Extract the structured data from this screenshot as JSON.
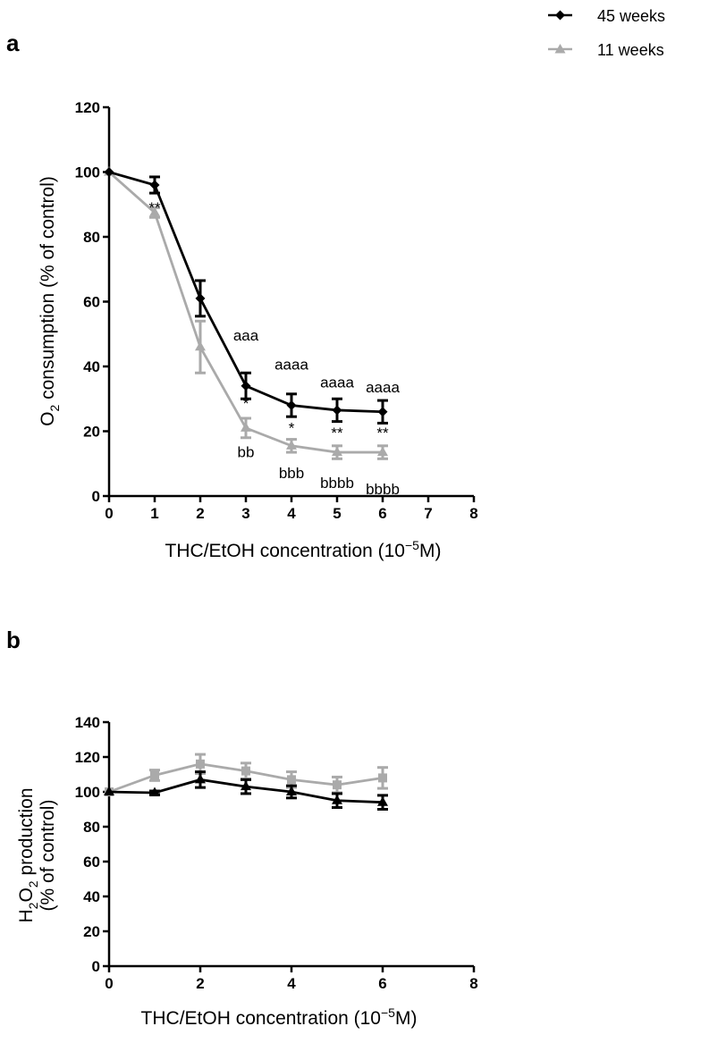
{
  "legend": {
    "series1": "45 weeks",
    "series2": "11 weeks"
  },
  "chart_data": [
    {
      "panel": "a",
      "type": "line",
      "ylabel_main": "O",
      "ylabel_sub": "2",
      "ylabel_rest": " consumption (% of control)",
      "xlabel_main": "THC/EtOH concentration (10",
      "xlabel_sup": "−5",
      "xlabel_rest": "M)",
      "xlim": [
        0,
        8
      ],
      "ylim": [
        0,
        120
      ],
      "xticks": [
        0,
        1,
        2,
        3,
        4,
        5,
        6,
        7,
        8
      ],
      "yticks": [
        0,
        20,
        40,
        60,
        80,
        100,
        120
      ],
      "series": [
        {
          "name": "45 weeks",
          "color": "#000000",
          "marker": "diamond",
          "x": [
            0,
            1,
            2,
            3,
            4,
            5,
            6
          ],
          "y": [
            100,
            96,
            61,
            34,
            28,
            26.5,
            26
          ],
          "err": [
            0,
            2.5,
            5.5,
            4,
            3.5,
            3.5,
            3.5
          ]
        },
        {
          "name": "11 weeks",
          "color": "#aaaaaa",
          "marker": "triangle",
          "x": [
            0,
            1,
            2,
            3,
            4,
            5,
            6
          ],
          "y": [
            100,
            87.5,
            46,
            21,
            15.5,
            13.5,
            13.5
          ],
          "err": [
            0,
            1.5,
            8,
            3,
            2,
            2,
            2
          ]
        }
      ],
      "annotations": [
        {
          "text": "**",
          "x": 1,
          "y": 87.5
        },
        {
          "text": "aaa",
          "x": 3,
          "y": 48
        },
        {
          "text": "*",
          "x": 3,
          "y": 27
        },
        {
          "text": "bb",
          "x": 3,
          "y": 12
        },
        {
          "text": "aaaa",
          "x": 4,
          "y": 39
        },
        {
          "text": "*",
          "x": 4,
          "y": 19.5
        },
        {
          "text": "bbb",
          "x": 4,
          "y": 5.5
        },
        {
          "text": "aaaa",
          "x": 5,
          "y": 33.5
        },
        {
          "text": "**",
          "x": 5,
          "y": 18
        },
        {
          "text": "bbbb",
          "x": 5,
          "y": 2.5
        },
        {
          "text": "aaaa",
          "x": 6,
          "y": 32
        },
        {
          "text": "**",
          "x": 6,
          "y": 18
        },
        {
          "text": "bbbb",
          "x": 6,
          "y": 0.5
        }
      ]
    },
    {
      "panel": "b",
      "type": "line",
      "ylabel_line1_main": "H",
      "ylabel_line1_sub1": "2",
      "ylabel_line1_mid": "O",
      "ylabel_line1_sub2": "2",
      "ylabel_line1_rest": " production",
      "ylabel_line2": "(% of control)",
      "xlabel_main": "THC/EtOH concentration (10",
      "xlabel_sup": "−5",
      "xlabel_rest": "M)",
      "xlim": [
        0,
        8
      ],
      "ylim": [
        0,
        140
      ],
      "xticks": [
        0,
        2,
        4,
        6,
        8
      ],
      "yticks": [
        0,
        20,
        40,
        60,
        80,
        100,
        120,
        140
      ],
      "series": [
        {
          "name": "45 weeks",
          "color": "#000000",
          "marker": "triangle",
          "x": [
            0,
            1,
            2,
            3,
            4,
            5,
            6
          ],
          "y": [
            100,
            99.5,
            107,
            103,
            100,
            95,
            94
          ],
          "err": [
            0,
            1,
            4.5,
            4,
            3.5,
            4,
            4
          ]
        },
        {
          "name": "11 weeks",
          "color": "#aaaaaa",
          "marker": "square",
          "x": [
            0,
            1,
            2,
            3,
            4,
            5,
            6
          ],
          "y": [
            100,
            109.5,
            116,
            112,
            107,
            104,
            108
          ],
          "err": [
            0,
            3,
            5.5,
            4.5,
            4.5,
            4.5,
            6
          ]
        }
      ]
    }
  ]
}
